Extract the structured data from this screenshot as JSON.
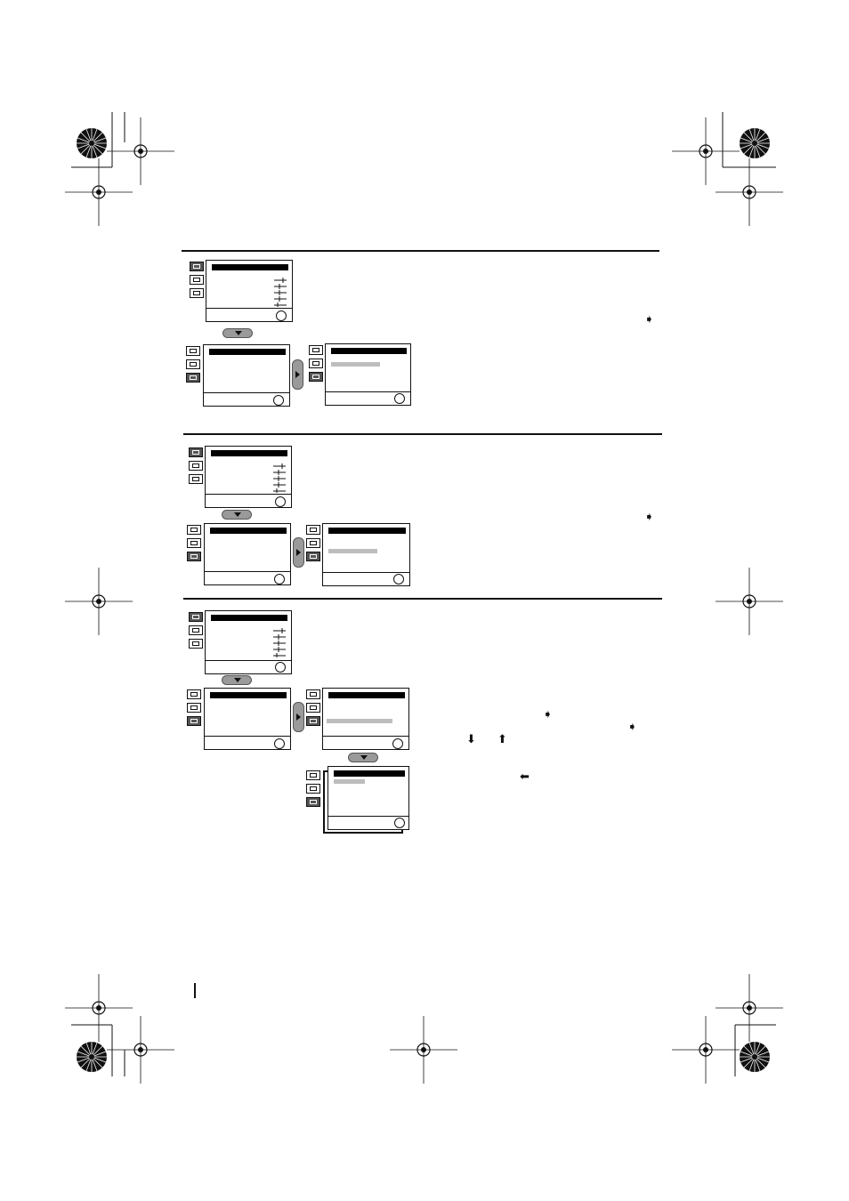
{
  "registration_marks": "crosshair-marks",
  "sections": [
    {
      "name": "section-1"
    },
    {
      "name": "section-2"
    },
    {
      "name": "section-3"
    }
  ]
}
